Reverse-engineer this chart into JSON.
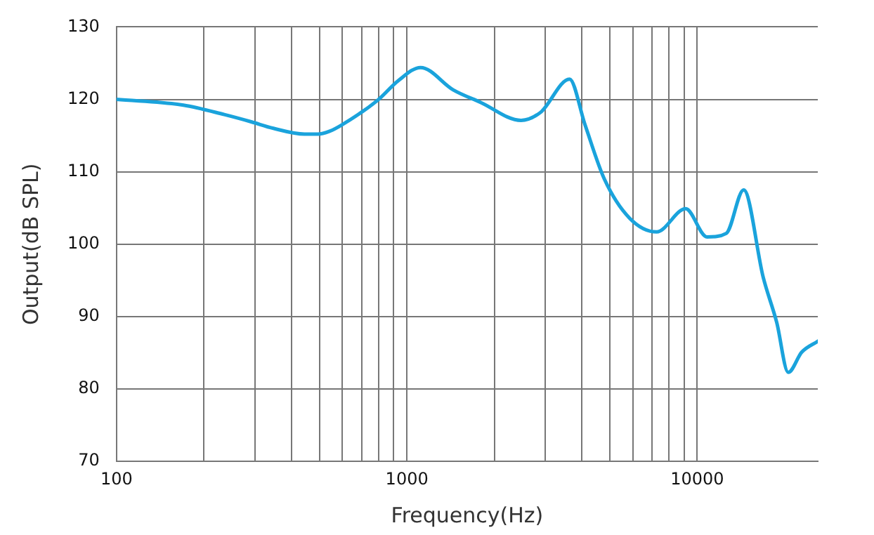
{
  "chart_data": {
    "type": "line",
    "xlabel": "Frequency(Hz)",
    "ylabel": "Output(dB SPL)",
    "log": "x",
    "grid": true,
    "legend": false,
    "marker": "none",
    "line_style": "solid",
    "xlim": [
      100,
      26000
    ],
    "ylim": [
      70,
      130
    ],
    "xticks": [
      100,
      {
        "value": 200,
        "label": null
      },
      {
        "value": 300,
        "label": null
      },
      {
        "value": 400,
        "label": null
      },
      {
        "value": 500,
        "label": null
      },
      {
        "value": 600,
        "label": null
      },
      {
        "value": 700,
        "label": null
      },
      {
        "value": 800,
        "label": null
      },
      {
        "value": 900,
        "label": null
      },
      1000,
      {
        "value": 2000,
        "label": null
      },
      {
        "value": 3000,
        "label": null
      },
      {
        "value": 4000,
        "label": null
      },
      {
        "value": 5000,
        "label": null
      },
      {
        "value": 6000,
        "label": null
      },
      {
        "value": 7000,
        "label": null
      },
      {
        "value": 8000,
        "label": null
      },
      {
        "value": 9000,
        "label": null
      },
      10000
    ],
    "yticks": [
      70,
      80,
      90,
      100,
      110,
      120,
      130
    ],
    "x": [
      100,
      170,
      235,
      291,
      347,
      444,
      494,
      542,
      593,
      794,
      935,
      1114,
      1445,
      1791,
      2473,
      2884,
      3631,
      4105,
      4786,
      5845,
      7244,
      9120,
      10800,
      12590,
      14450,
      16870,
      18770,
      20570,
      22900,
      26000
    ],
    "series": [
      {
        "color": "#1aa3dc",
        "values": [
          120,
          119.2,
          117.9,
          116.9,
          116,
          115.2,
          115.2,
          115.6,
          116.4,
          119.9,
          122.6,
          124.4,
          121.3,
          119.6,
          117.1,
          118.2,
          122.8,
          116.5,
          109,
          103.6,
          101.7,
          104.9,
          101,
          101.5,
          107.5,
          95.4,
          89.2,
          82.3,
          85.1,
          86.6
        ]
      }
    ]
  }
}
